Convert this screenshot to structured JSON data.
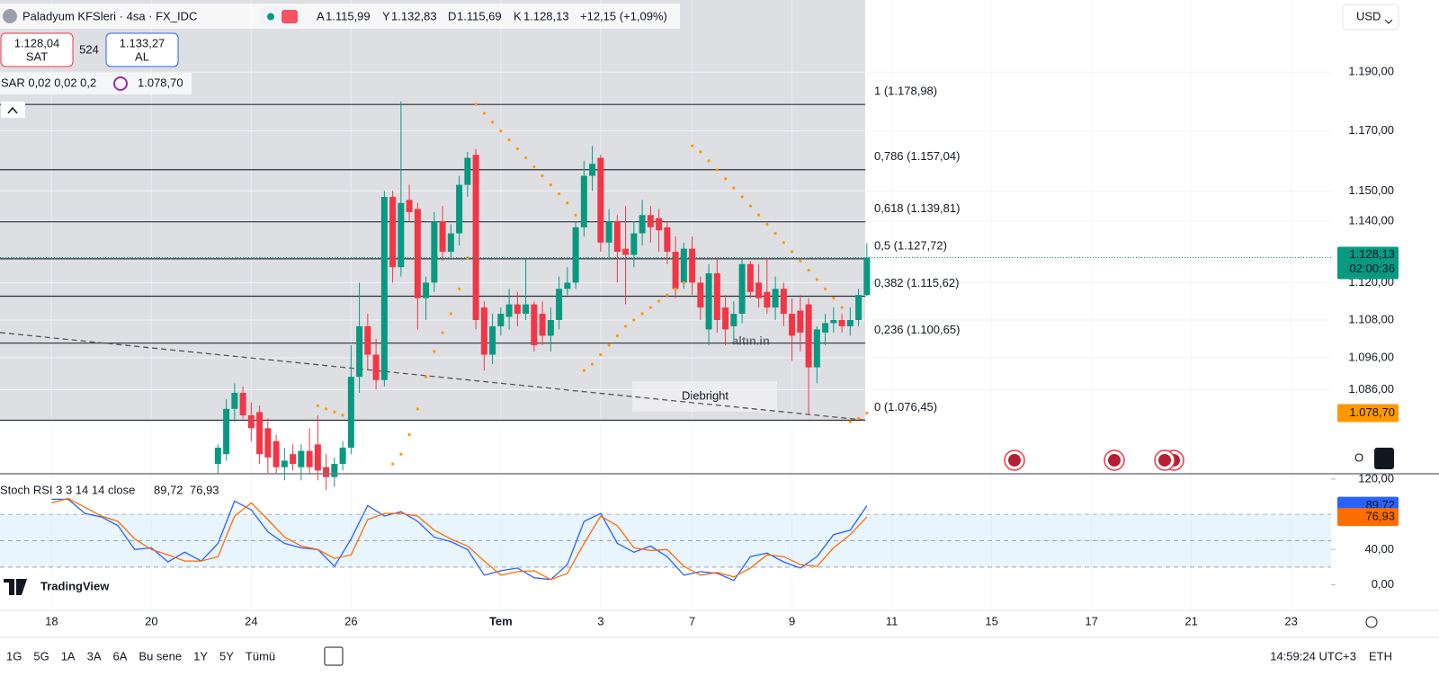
{
  "chart_data": [
    {
      "type": "candlestick",
      "log_scale": true,
      "grid": true,
      "up_color": "#089981",
      "down_color": "#f23645",
      "xlim": [
        -6.2,
        153.8
      ],
      "ylim": [
        1060,
        1215
      ],
      "xticks": [
        {
          "value": 0,
          "label": "18"
        },
        {
          "value": 12,
          "label": "20"
        },
        {
          "value": 24,
          "label": "24"
        },
        {
          "value": 36,
          "label": "26"
        },
        {
          "value": 54,
          "label": "Tem"
        },
        {
          "value": 66,
          "label": "3"
        },
        {
          "value": 77,
          "label": "7"
        },
        {
          "value": 89,
          "label": "9"
        },
        {
          "value": 101,
          "label": "11"
        },
        {
          "value": 113,
          "label": "15"
        },
        {
          "value": 125,
          "label": "17"
        },
        {
          "value": 137,
          "label": "21"
        },
        {
          "value": 149,
          "label": "23"
        }
      ],
      "yticks": [
        {
          "value": 1190,
          "label": "1.190,00"
        },
        {
          "value": 1170,
          "label": "1.170,00"
        },
        {
          "value": 1150,
          "label": "1.150,00"
        },
        {
          "value": 1140,
          "label": "1.140,00"
        },
        {
          "value": 1120,
          "label": "1.120,00"
        },
        {
          "value": 1108,
          "label": "1.108,00"
        },
        {
          "value": 1096,
          "label": "1.096,00"
        },
        {
          "value": 1086,
          "label": "1.086,00"
        }
      ],
      "x": [
        20,
        21,
        22,
        23,
        24,
        25,
        26,
        27,
        28,
        29,
        30,
        31,
        32,
        33,
        34,
        35,
        36,
        37,
        38,
        39,
        40,
        41,
        42,
        43,
        44,
        45,
        46,
        47,
        48,
        49,
        50,
        51,
        52,
        53,
        54,
        55,
        56,
        57,
        58,
        59,
        60,
        61,
        62,
        63,
        64,
        65,
        66,
        67,
        68,
        69,
        70,
        71,
        72,
        73,
        74,
        75,
        76,
        77,
        78,
        79,
        80,
        81,
        82,
        83,
        84,
        85,
        86,
        87,
        88,
        89,
        90,
        91,
        92,
        93,
        94,
        95,
        96,
        97,
        98
      ],
      "open": [
        1063,
        1066,
        1080,
        1085,
        1078,
        1079,
        1074,
        1070,
        1062,
        1066,
        1062,
        1067,
        1069,
        1062,
        1059,
        1063,
        1068,
        1090,
        1106,
        1097,
        1089,
        1148,
        1125,
        1147,
        1144,
        1115,
        1120,
        1140,
        1130,
        1136,
        1152,
        1162,
        1112,
        1097,
        1106,
        1109,
        1113,
        1110,
        1113,
        1110,
        1103,
        1108,
        1118,
        1120,
        1138,
        1155,
        1161,
        1133,
        1140,
        1131,
        1129,
        1136,
        1142,
        1141,
        1138,
        1130,
        1120,
        1131,
        1120,
        1105,
        1123,
        1112,
        1106,
        1110,
        1126,
        1120,
        1117,
        1112,
        1118,
        1110,
        1111,
        1113,
        1093,
        1104,
        1107,
        1108,
        1106,
        1108,
        1115.99
      ],
      "high": [
        1069,
        1083,
        1088,
        1087,
        1082,
        1081,
        1077,
        1072,
        1068,
        1069,
        1069,
        1074,
        1078,
        1066,
        1065,
        1070,
        1100,
        1120,
        1110,
        1102,
        1150,
        1150,
        1180,
        1152,
        1146,
        1122,
        1143,
        1145,
        1139,
        1155,
        1163,
        1164,
        1114,
        1110,
        1112,
        1118,
        1117,
        1128,
        1114,
        1114,
        1112,
        1122,
        1125,
        1140,
        1160,
        1165,
        1162,
        1144,
        1142,
        1145,
        1140,
        1147,
        1145,
        1144,
        1140,
        1135,
        1133,
        1135,
        1122,
        1126,
        1128,
        1116,
        1114,
        1128,
        1127,
        1126,
        1128,
        1122,
        1120,
        1115,
        1116,
        1115,
        1106,
        1110,
        1112,
        1110,
        1112,
        1118,
        1132.83
      ],
      "low": [
        1060,
        1064,
        1076,
        1077,
        1070,
        1063,
        1060,
        1060,
        1058,
        1061,
        1058,
        1060,
        1058,
        1055,
        1056,
        1061,
        1066,
        1085,
        1092,
        1086,
        1087,
        1120,
        1122,
        1140,
        1105,
        1108,
        1117,
        1127,
        1128,
        1132,
        1148,
        1105,
        1092,
        1094,
        1103,
        1105,
        1106,
        1108,
        1098,
        1100,
        1098,
        1105,
        1116,
        1118,
        1135,
        1150,
        1130,
        1128,
        1120,
        1113,
        1125,
        1132,
        1133,
        1130,
        1126,
        1115,
        1118,
        1116,
        1108,
        1100,
        1104,
        1100,
        1102,
        1107,
        1115,
        1112,
        1110,
        1108,
        1106,
        1095,
        1098,
        1078,
        1088,
        1100,
        1104,
        1104,
        1103,
        1106,
        1115.69
      ],
      "close": [
        1068,
        1080,
        1085,
        1078,
        1074,
        1066,
        1065,
        1062,
        1064,
        1063,
        1067,
        1062,
        1061,
        1059,
        1063,
        1068,
        1090,
        1106,
        1097,
        1089,
        1148,
        1125,
        1146,
        1143,
        1115,
        1120,
        1140,
        1130,
        1136,
        1152,
        1161,
        1108,
        1097,
        1106,
        1110,
        1113,
        1110,
        1113,
        1100,
        1103,
        1108,
        1118,
        1120,
        1138,
        1155,
        1159,
        1133,
        1140,
        1130,
        1129,
        1136,
        1142,
        1138,
        1137,
        1130,
        1118,
        1131,
        1120,
        1112,
        1123,
        1108,
        1105,
        1110,
        1126,
        1117,
        1115,
        1112,
        1118,
        1110,
        1103,
        1104,
        1093,
        1105,
        1107,
        1108,
        1106,
        1108,
        1116,
        1128.13
      ],
      "last_price_label": "1.128,13",
      "countdown": "02:00:36",
      "sar": {
        "title": "SAR 0,02 0,02 0,2",
        "color": "#ff9800",
        "last_label": "1.078,70",
        "values": [
          null,
          null,
          null,
          null,
          null,
          null,
          null,
          null,
          null,
          null,
          null,
          null,
          1081,
          1080,
          1079,
          1078,
          null,
          null,
          null,
          null,
          null,
          1063,
          1066,
          1072,
          1080,
          1090,
          1098,
          1104,
          1110,
          1118,
          1128,
          1179,
          1176,
          1173,
          1170,
          1167,
          1164,
          1161,
          1158,
          1155,
          1152,
          1149,
          1146,
          1142,
          1092,
          1094,
          1097,
          1100,
          1103,
          1106,
          1108,
          1110,
          1112,
          1114,
          1116,
          1118,
          1120,
          1165,
          1163,
          1160,
          1157,
          1154,
          1151,
          1148,
          1145,
          1142,
          1139,
          1136,
          1133,
          1130,
          1127,
          1124,
          1121,
          1118,
          1115,
          1112,
          1076,
          1077,
          1078.7
        ]
      },
      "fib_levels": [
        {
          "value": 1178.98,
          "label": "1 (1.178,98)"
        },
        {
          "value": 1157.04,
          "label": "0,786 (1.157,04)"
        },
        {
          "value": 1139.81,
          "label": "0,618 (1.139,81)"
        },
        {
          "value": 1127.72,
          "label": "0,5 (1.127,72)"
        },
        {
          "value": 1115.62,
          "label": "0,382 (1.115,62)"
        },
        {
          "value": 1100.65,
          "label": "0,236 (1.100,65)"
        },
        {
          "value": 1076.45,
          "label": "0 (1.076,45)"
        }
      ],
      "trendline": {
        "x": [
          -6.2,
          97.8
        ],
        "values": [
          1104,
          1076.5
        ]
      }
    },
    {
      "type": "line",
      "title": "Stoch RSI 3 3 14 14 close",
      "xlim": [
        -6.2,
        153.8
      ],
      "ylim": [
        -30,
        126
      ],
      "yticks": [
        {
          "value": 120,
          "label": "120,00"
        },
        {
          "value": 40,
          "label": "40,00"
        },
        {
          "value": 0,
          "label": "0,00"
        }
      ],
      "band_levels": [
        80,
        50,
        20
      ],
      "x": [
        0,
        2,
        4,
        6,
        8,
        10,
        12,
        14,
        16,
        18,
        20,
        22,
        24,
        26,
        28,
        30,
        32,
        34,
        36,
        38,
        40,
        42,
        44,
        46,
        48,
        50,
        52,
        54,
        56,
        58,
        60,
        62,
        64,
        66,
        68,
        70,
        72,
        74,
        76,
        78,
        80,
        82,
        84,
        86,
        88,
        90,
        92,
        94,
        96,
        98
      ],
      "series": [
        {
          "color": "#2962ff",
          "last_label": "89,72",
          "values": [
            97,
            97,
            81,
            77,
            67,
            40,
            42,
            26,
            37,
            27,
            47,
            95,
            85,
            60,
            47,
            42,
            40,
            21,
            52,
            90,
            78,
            83,
            72,
            54,
            49,
            40,
            11,
            16,
            19,
            8,
            6,
            23,
            72,
            81,
            47,
            37,
            44,
            32,
            11,
            15,
            13,
            5,
            32,
            36,
            26,
            19,
            32,
            57,
            62,
            89.72
          ]
        },
        {
          "color": "#ff6d00",
          "last_label": "76,93",
          "values": [
            93,
            98,
            88,
            78,
            72,
            52,
            40,
            34,
            27,
            27,
            32,
            78,
            93,
            74,
            54,
            44,
            40,
            30,
            34,
            74,
            81,
            81,
            78,
            62,
            52,
            44,
            27,
            11,
            15,
            16,
            6,
            13,
            47,
            78,
            67,
            42,
            39,
            40,
            21,
            11,
            14,
            9,
            19,
            34,
            32,
            23,
            21,
            42,
            57,
            76.93
          ]
        }
      ]
    }
  ],
  "ui": {
    "symbol": "Paladyum KFSleri · 4sa · FX_IDC",
    "ohlc": [
      {
        "key": "A",
        "value": "1.115,99"
      },
      {
        "key": "Y",
        "value": "1.132,83"
      },
      {
        "key": "D",
        "value": "1.115,69"
      },
      {
        "key": "K",
        "value": "1.128,13"
      }
    ],
    "change": "+12,15 (+1,09%)",
    "sell": {
      "price": "1.128,04",
      "label": "SAT"
    },
    "spread": "524",
    "buy": {
      "price": "1.133,27",
      "label": "AL"
    },
    "currency": "USD",
    "scale_buttons": [
      "O",
      "L"
    ],
    "watermark": "altın.in",
    "author": "Diebright",
    "logo": "TradingView",
    "ranges": [
      "1G",
      "5G",
      "1A",
      "3A",
      "6A",
      "Bu sene",
      "1Y",
      "5Y",
      "Tümü"
    ],
    "clock": "14:59:24 UTC+3",
    "session": "ETH"
  }
}
